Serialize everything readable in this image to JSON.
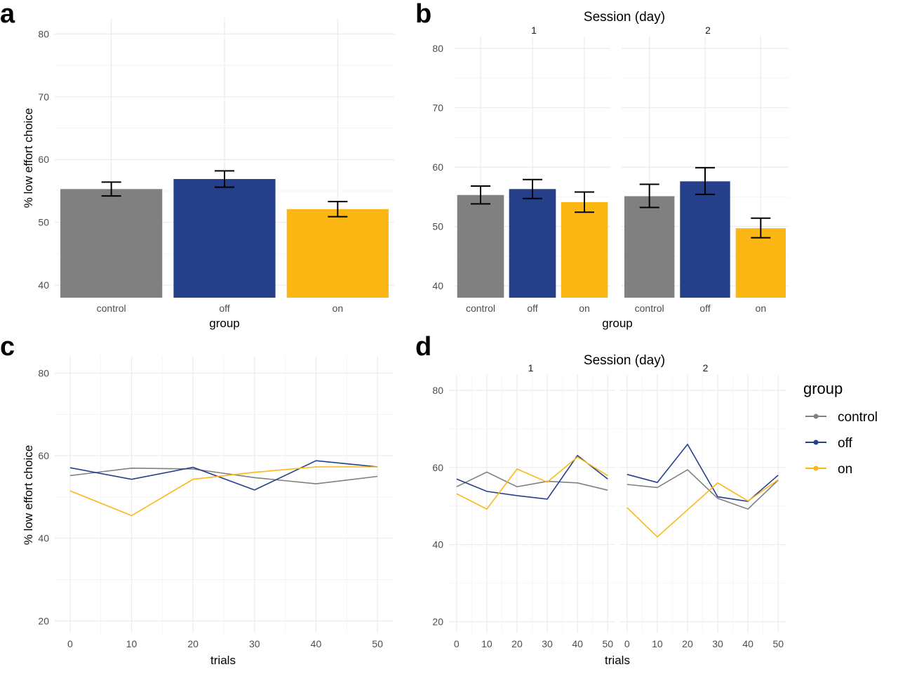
{
  "panel_labels": {
    "a": "a",
    "b": "b",
    "c": "c",
    "d": "d"
  },
  "colors": {
    "control": "#808080",
    "off": "#253f8b",
    "on": "#fcb714"
  },
  "legend": {
    "title": "group",
    "items": [
      {
        "label": "control",
        "color": "#808080"
      },
      {
        "label": "off",
        "color": "#253f8b"
      },
      {
        "label": "on",
        "color": "#fcb714"
      }
    ]
  },
  "chart_data": [
    {
      "panel": "a",
      "type": "bar",
      "categories": [
        "control",
        "off",
        "on"
      ],
      "values": [
        55.3,
        56.9,
        52.1
      ],
      "error": [
        [
          54.2,
          56.4
        ],
        [
          55.6,
          58.2
        ],
        [
          50.9,
          53.3
        ]
      ],
      "xlabel": "group",
      "ylabel": "% low effort choice",
      "yticks": [
        40,
        50,
        60,
        70,
        80
      ],
      "ylim": [
        38,
        82.5
      ]
    },
    {
      "panel": "b",
      "type": "bar",
      "facet_title": "Session (day)",
      "facets": [
        {
          "label": "1",
          "categories": [
            "control",
            "off",
            "on"
          ],
          "values": [
            55.3,
            56.3,
            54.1
          ],
          "error": [
            [
              53.8,
              56.8
            ],
            [
              54.7,
              57.9
            ],
            [
              52.4,
              55.8
            ]
          ]
        },
        {
          "label": "2",
          "categories": [
            "control",
            "off",
            "on"
          ],
          "values": [
            55.1,
            57.6,
            49.7
          ],
          "error": [
            [
              53.2,
              57.1
            ],
            [
              55.4,
              59.9
            ],
            [
              48.1,
              51.4
            ]
          ]
        }
      ],
      "xlabel": "group",
      "ylabel": "",
      "yticks": [
        40,
        50,
        60,
        70,
        80
      ],
      "ylim": [
        38,
        82
      ]
    },
    {
      "panel": "c",
      "type": "line",
      "x": [
        0,
        10,
        20,
        30,
        40,
        50
      ],
      "series": [
        {
          "name": "control",
          "values": [
            55.2,
            57.0,
            56.8,
            54.7,
            53.2,
            55.0
          ]
        },
        {
          "name": "off",
          "values": [
            57.1,
            54.3,
            57.2,
            51.7,
            58.8,
            57.3
          ]
        },
        {
          "name": "on",
          "values": [
            51.5,
            45.5,
            54.3,
            56.0,
            57.3,
            57.3
          ]
        }
      ],
      "xlabel": "trials",
      "ylabel": "% low effort choice",
      "xticks": [
        0,
        10,
        20,
        30,
        40,
        50
      ],
      "yticks": [
        20,
        40,
        60,
        80
      ],
      "xlim": [
        -2.5,
        52.5
      ],
      "ylim": [
        17,
        84
      ]
    },
    {
      "panel": "d",
      "type": "line",
      "facet_title": "Session (day)",
      "x": [
        0,
        10,
        20,
        30,
        40,
        50
      ],
      "facets": [
        {
          "label": "1",
          "series": [
            {
              "name": "control",
              "values": [
                55.0,
                58.8,
                55.0,
                56.4,
                56.0,
                54.1
              ]
            },
            {
              "name": "off",
              "values": [
                57.0,
                53.8,
                52.7,
                51.8,
                63.1,
                57.0
              ]
            },
            {
              "name": "on",
              "values": [
                53.2,
                49.2,
                59.6,
                56.2,
                62.7,
                57.9
              ]
            }
          ]
        },
        {
          "label": "2",
          "series": [
            {
              "name": "control",
              "values": [
                55.6,
                54.8,
                59.4,
                52.0,
                49.2,
                56.7
              ]
            },
            {
              "name": "off",
              "values": [
                58.2,
                56.1,
                66.0,
                52.4,
                51.2,
                58.0
              ]
            },
            {
              "name": "on",
              "values": [
                49.6,
                42.0,
                49.0,
                56.0,
                51.3,
                56.8
              ]
            }
          ]
        }
      ],
      "xlabel": "trials",
      "ylabel": "",
      "xticks": [
        0,
        10,
        20,
        30,
        40,
        50
      ],
      "yticks": [
        20,
        40,
        60,
        80
      ],
      "xlim": [
        -2.5,
        52.5
      ],
      "ylim": [
        17,
        84
      ]
    }
  ]
}
